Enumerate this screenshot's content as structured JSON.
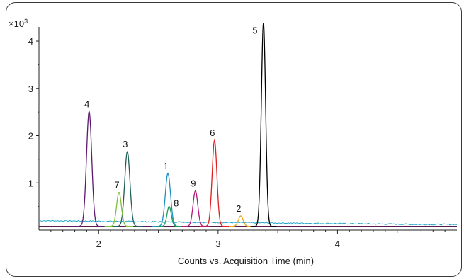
{
  "chart_data": {
    "type": "line",
    "title": "",
    "xlabel": "Counts vs. Acquisition Time (min)",
    "ylabel": "",
    "y_multiplier_base": "×10",
    "y_multiplier_exp": "3",
    "xlim": [
      1.5,
      5.0
    ],
    "ylim": [
      0,
      4.3
    ],
    "x_ticks": [
      2,
      3,
      4
    ],
    "y_ticks": [
      1,
      2,
      3,
      4
    ],
    "grid": false,
    "baseline": 0.08,
    "series": [
      {
        "label": "1",
        "color": "#1e90c8",
        "rt": 2.58,
        "height": 1.12,
        "width": 0.022
      },
      {
        "label": "2",
        "color": "#e8a317",
        "rt": 3.19,
        "height": 0.22,
        "width": 0.02
      },
      {
        "label": "3",
        "color": "#1f5f5a",
        "rt": 2.24,
        "height": 1.58,
        "width": 0.022
      },
      {
        "label": "4",
        "color": "#5a1a6e",
        "rt": 1.92,
        "height": 2.43,
        "width": 0.022
      },
      {
        "label": "5",
        "color": "#000000",
        "rt": 3.38,
        "height": 4.3,
        "width": 0.018
      },
      {
        "label": "6",
        "color": "#e02020",
        "rt": 2.97,
        "height": 1.82,
        "width": 0.02
      },
      {
        "label": "7",
        "color": "#7cc13a",
        "rt": 2.17,
        "height": 0.72,
        "width": 0.02
      },
      {
        "label": "8",
        "color": "#1a9a5a",
        "rt": 2.59,
        "height": 0.42,
        "width": 0.018
      },
      {
        "label": "9",
        "color": "#b0187a",
        "rt": 2.81,
        "height": 0.75,
        "width": 0.02
      }
    ]
  }
}
